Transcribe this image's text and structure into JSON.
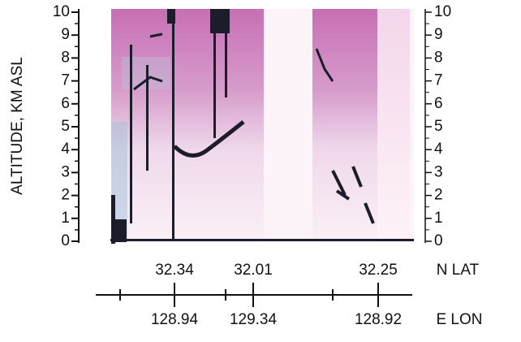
{
  "chart_data": {
    "type": "lidar-curtain",
    "ylabel": "ALTITUDE, KM ASL",
    "ylim": [
      0,
      10
    ],
    "yticks": [
      0,
      1,
      2,
      3,
      4,
      5,
      6,
      7,
      8,
      9,
      10
    ],
    "lat_label": "N LAT",
    "lat_ticks": [
      "32.34",
      "32.01",
      "32.25"
    ],
    "lon_label": "E LON",
    "lon_ticks": [
      "128.94",
      "129.34",
      "128.92"
    ]
  }
}
